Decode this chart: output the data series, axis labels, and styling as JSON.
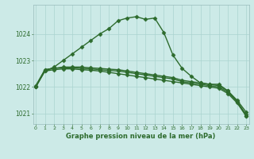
{
  "x": [
    0,
    1,
    2,
    3,
    4,
    5,
    6,
    7,
    8,
    9,
    10,
    11,
    12,
    13,
    14,
    15,
    16,
    17,
    18,
    19,
    20,
    21,
    22,
    23
  ],
  "line1": [
    1022.0,
    1022.6,
    1022.75,
    1023.0,
    1023.25,
    1023.5,
    1023.75,
    1024.0,
    1024.2,
    1024.5,
    1024.6,
    1024.65,
    1024.55,
    1024.6,
    1024.05,
    1023.2,
    1022.7,
    1022.4,
    1022.15,
    1022.1,
    1022.1,
    1021.85,
    1021.45,
    1020.9
  ],
  "line2": [
    1022.05,
    1022.65,
    1022.7,
    1022.75,
    1022.75,
    1022.75,
    1022.72,
    1022.7,
    1022.67,
    1022.65,
    1022.6,
    1022.55,
    1022.5,
    1022.45,
    1022.4,
    1022.35,
    1022.25,
    1022.2,
    1022.15,
    1022.1,
    1022.05,
    1021.85,
    1021.5,
    1021.05
  ],
  "line3": [
    1022.0,
    1022.65,
    1022.7,
    1022.72,
    1022.72,
    1022.7,
    1022.68,
    1022.65,
    1022.62,
    1022.6,
    1022.55,
    1022.5,
    1022.45,
    1022.4,
    1022.35,
    1022.3,
    1022.2,
    1022.15,
    1022.1,
    1022.05,
    1022.0,
    1021.8,
    1021.45,
    1020.95
  ],
  "line4": [
    1022.0,
    1022.6,
    1022.65,
    1022.68,
    1022.68,
    1022.65,
    1022.63,
    1022.6,
    1022.55,
    1022.5,
    1022.45,
    1022.4,
    1022.35,
    1022.3,
    1022.25,
    1022.2,
    1022.15,
    1022.1,
    1022.05,
    1022.0,
    1021.95,
    1021.75,
    1021.4,
    1020.9
  ],
  "bg_color": "#cceae7",
  "grid_color": "#aad4d0",
  "line_color": "#2d6b2d",
  "xlabel": "Graphe pression niveau de la mer (hPa)",
  "ylim": [
    1020.6,
    1025.1
  ],
  "xlim": [
    -0.3,
    23.3
  ],
  "yticks": [
    1021,
    1022,
    1023,
    1024
  ],
  "xticks": [
    0,
    1,
    2,
    3,
    4,
    5,
    6,
    7,
    8,
    9,
    10,
    11,
    12,
    13,
    14,
    15,
    16,
    17,
    18,
    19,
    20,
    21,
    22,
    23
  ],
  "marker": "D",
  "markersize": 2.5,
  "linewidth": 1.0
}
